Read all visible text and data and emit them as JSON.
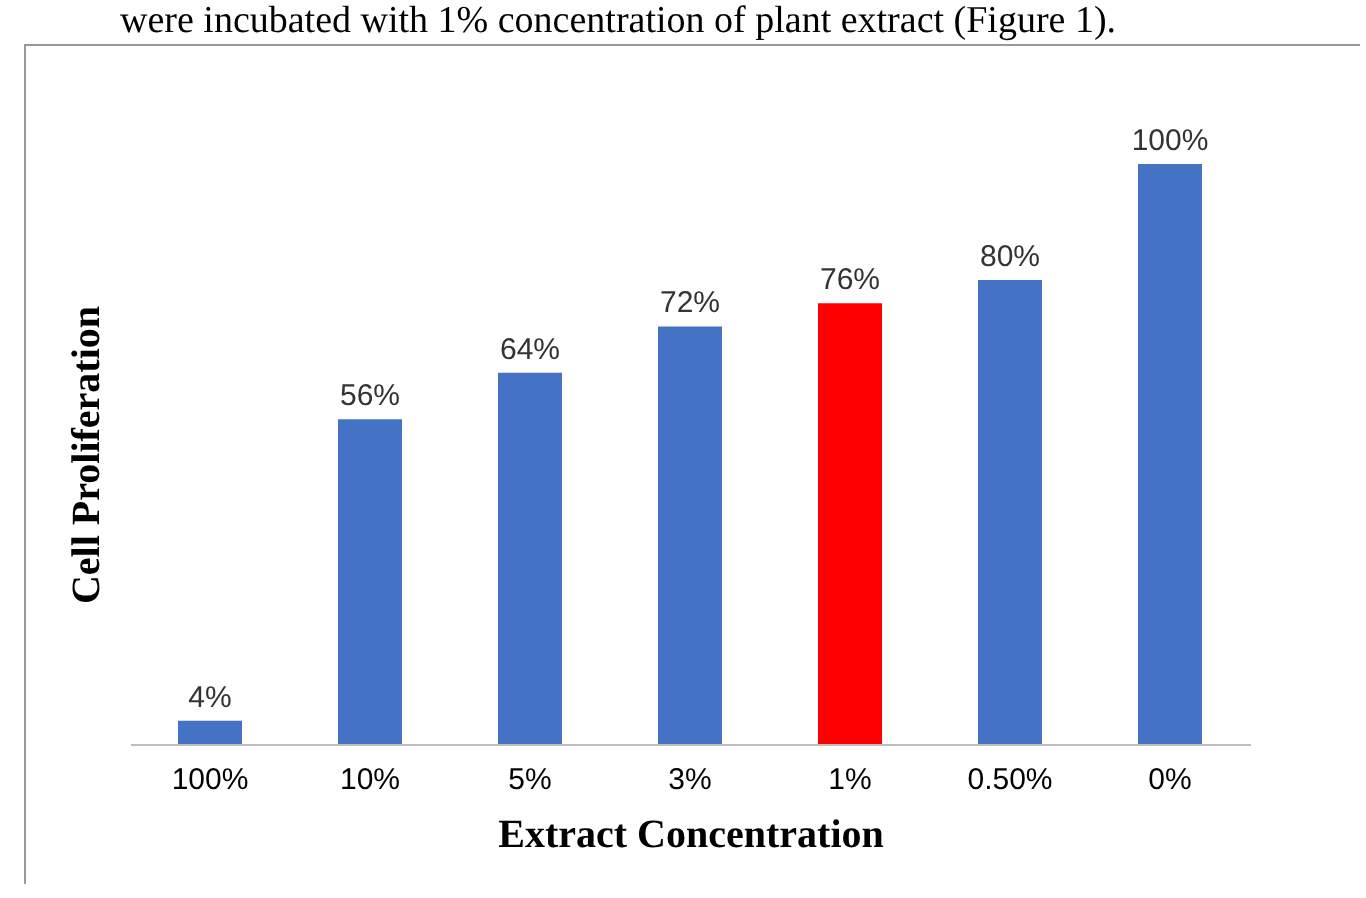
{
  "chart_data": {
    "type": "bar",
    "xlabel": "Extract Concentration",
    "ylabel": "Cell Proliferation",
    "categories": [
      "100%",
      "10%",
      "5%",
      "3%",
      "1%",
      "0.50%",
      "0%"
    ],
    "values": [
      4,
      56,
      64,
      72,
      76,
      80,
      100
    ],
    "colors": [
      "#4472c4",
      "#4472c4",
      "#4472c4",
      "#4472c4",
      "#ff0000",
      "#4472c4",
      "#4472c4"
    ],
    "value_labels": [
      "4%",
      "56%",
      "64%",
      "72%",
      "76%",
      "80%",
      "100%"
    ],
    "annotations": [
      "were incubated with 1% concentration of plant extract (Figure 1)."
    ],
    "grid": false
  }
}
